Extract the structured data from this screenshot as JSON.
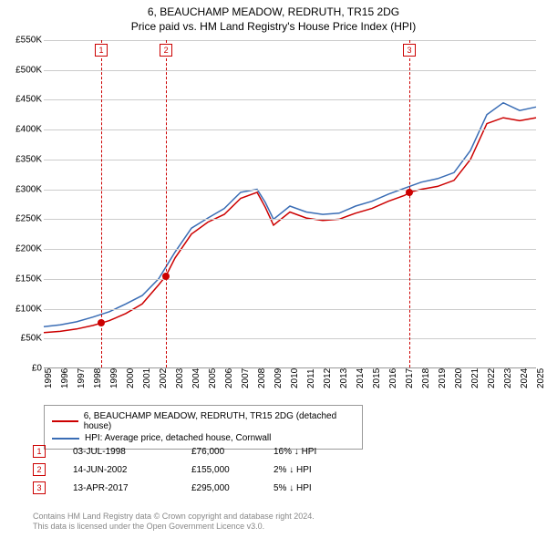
{
  "title_line1": "6, BEAUCHAMP MEADOW, REDRUTH, TR15 2DG",
  "title_line2": "Price paid vs. HM Land Registry's House Price Index (HPI)",
  "chart": {
    "type": "line",
    "background_color": "#ffffff",
    "grid_color": "#cccccc",
    "x_years": [
      1995,
      1996,
      1997,
      1998,
      1999,
      2000,
      2001,
      2002,
      2003,
      2004,
      2005,
      2006,
      2007,
      2008,
      2009,
      2010,
      2011,
      2012,
      2013,
      2014,
      2015,
      2016,
      2017,
      2018,
      2019,
      2020,
      2021,
      2022,
      2023,
      2024,
      2025
    ],
    "y_ticks": [
      0,
      50000,
      100000,
      150000,
      200000,
      250000,
      300000,
      350000,
      400000,
      450000,
      500000,
      550000
    ],
    "y_tick_labels": [
      "£0",
      "£50K",
      "£100K",
      "£150K",
      "£200K",
      "£250K",
      "£300K",
      "£350K",
      "£400K",
      "£450K",
      "£500K",
      "£550K"
    ],
    "ylim": [
      0,
      550000
    ],
    "series": [
      {
        "name": "6, BEAUCHAMP MEADOW, REDRUTH, TR15 2DG (detached house)",
        "color": "#cc0000",
        "line_width": 1.5,
        "values_by_year": {
          "1995": 60000,
          "1996": 62000,
          "1997": 66000,
          "1998": 72000,
          "1998.5": 76000,
          "1999": 80000,
          "2000": 92000,
          "2001": 108000,
          "2002": 140000,
          "2002.45": 155000,
          "2003": 185000,
          "2004": 225000,
          "2005": 245000,
          "2006": 258000,
          "2007": 285000,
          "2008": 295000,
          "2008.5": 270000,
          "2009": 240000,
          "2010": 262000,
          "2011": 252000,
          "2012": 248000,
          "2013": 250000,
          "2014": 260000,
          "2015": 268000,
          "2016": 280000,
          "2017": 290000,
          "2017.28": 295000,
          "2018": 300000,
          "2019": 305000,
          "2020": 315000,
          "2021": 350000,
          "2022": 410000,
          "2023": 420000,
          "2024": 415000,
          "2025": 420000
        }
      },
      {
        "name": "HPI: Average price, detached house, Cornwall",
        "color": "#3a6db5",
        "line_width": 1.5,
        "values_by_year": {
          "1995": 70000,
          "1996": 73000,
          "1997": 78000,
          "1998": 86000,
          "1999": 95000,
          "2000": 108000,
          "2001": 122000,
          "2002": 150000,
          "2003": 195000,
          "2004": 235000,
          "2005": 252000,
          "2006": 268000,
          "2007": 295000,
          "2008": 300000,
          "2008.5": 278000,
          "2009": 250000,
          "2010": 272000,
          "2011": 262000,
          "2012": 258000,
          "2013": 260000,
          "2014": 272000,
          "2015": 280000,
          "2016": 292000,
          "2017": 302000,
          "2018": 312000,
          "2019": 318000,
          "2020": 328000,
          "2021": 365000,
          "2022": 425000,
          "2023": 445000,
          "2024": 432000,
          "2025": 438000
        }
      }
    ],
    "event_lines": [
      {
        "idx": "1",
        "year": 1998.5
      },
      {
        "idx": "2",
        "year": 2002.45
      },
      {
        "idx": "3",
        "year": 2017.28
      }
    ],
    "sale_markers": [
      {
        "year": 1998.5,
        "price": 76000
      },
      {
        "year": 2002.45,
        "price": 155000
      },
      {
        "year": 2017.28,
        "price": 295000
      }
    ]
  },
  "legend": {
    "rows": [
      {
        "color": "#cc0000",
        "label": "6, BEAUCHAMP MEADOW, REDRUTH, TR15 2DG (detached house)"
      },
      {
        "color": "#3a6db5",
        "label": "HPI: Average price, detached house, Cornwall"
      }
    ]
  },
  "sales": [
    {
      "idx": "1",
      "date": "03-JUL-1998",
      "price": "£76,000",
      "diff": "16% ↓ HPI"
    },
    {
      "idx": "2",
      "date": "14-JUN-2002",
      "price": "£155,000",
      "diff": "2% ↓ HPI"
    },
    {
      "idx": "3",
      "date": "13-APR-2017",
      "price": "£295,000",
      "diff": "5% ↓ HPI"
    }
  ],
  "footer_line1": "Contains HM Land Registry data © Crown copyright and database right 2024.",
  "footer_line2": "This data is licensed under the Open Government Licence v3.0."
}
